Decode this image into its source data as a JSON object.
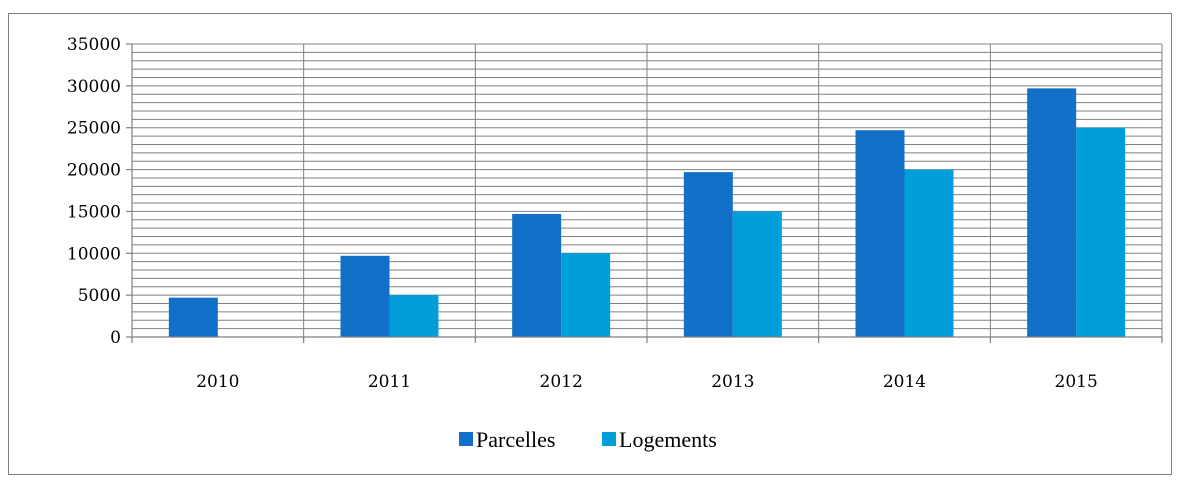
{
  "chart_data": {
    "type": "bar",
    "categories": [
      "2010",
      "2011",
      "2012",
      "2013",
      "2014",
      "2015"
    ],
    "series": [
      {
        "name": "Parcelles",
        "color": "#1270C8",
        "values": [
          4700,
          9700,
          14700,
          19700,
          24700,
          29700
        ]
      },
      {
        "name": "Logements",
        "color": "#009FDA",
        "values": [
          0,
          5000,
          10000,
          15000,
          20000,
          25000
        ]
      }
    ],
    "ylim": [
      0,
      35000
    ],
    "yticks": [
      "0",
      "5000",
      "10000",
      "15000",
      "20000",
      "25000",
      "30000",
      "35000"
    ],
    "minor_gridline_step": 1000,
    "grid": true,
    "legend_position": "bottom",
    "title": "",
    "xlabel": "",
    "ylabel": ""
  }
}
